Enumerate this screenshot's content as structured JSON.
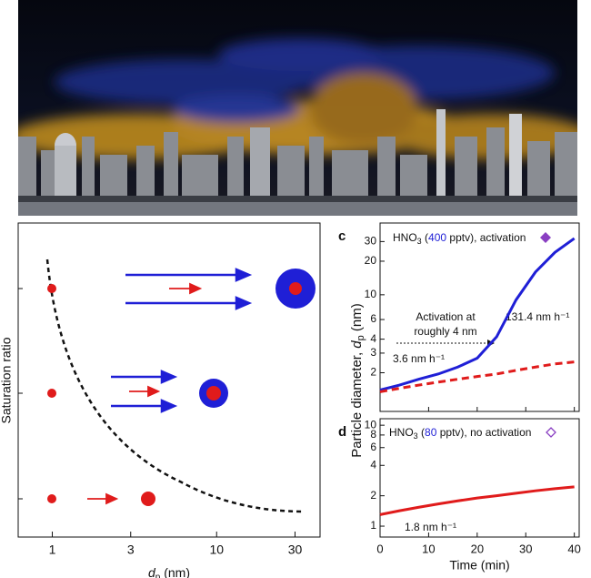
{
  "chart_data": [
    {
      "type": "schematic",
      "ylabel": "Saturation ratio",
      "xlabel": [
        "d",
        "p",
        " (nm)"
      ],
      "xscale": "log",
      "xlim": [
        0.62,
        42.6
      ],
      "xticks": [
        1,
        3,
        10,
        30
      ]
    },
    {
      "type": "line",
      "panel_label": "c",
      "annotation": [
        "HNO",
        "3",
        " (",
        "400",
        " pptv), activation"
      ],
      "labels": [
        "Activation at",
        "roughly 4 nm",
        "131.4 nm h⁻¹",
        "3.6 nm h⁻¹"
      ],
      "ylabel": [
        "Particle diameter, ",
        "d",
        "p",
        " (nm)"
      ],
      "yscale": "log",
      "ylim": [
        0.9,
        44
      ],
      "yticks": [
        2,
        3,
        4,
        6,
        10,
        20,
        30
      ],
      "xlim": [
        0,
        41
      ],
      "x": [
        0,
        4,
        8,
        12,
        16,
        20,
        24,
        28,
        32,
        36,
        40
      ],
      "series": [
        {
          "color": "#1f1fd6",
          "dashed": false,
          "values": [
            1.4,
            1.55,
            1.75,
            1.95,
            2.25,
            2.7,
            4.2,
            9,
            16,
            24,
            32
          ]
        },
        {
          "color": "#e01b1b",
          "dashed": true,
          "values": [
            1.35,
            1.45,
            1.55,
            1.65,
            1.75,
            1.85,
            1.95,
            2.1,
            2.25,
            2.4,
            2.5
          ]
        }
      ]
    },
    {
      "type": "line",
      "panel_label": "d",
      "annotation": [
        "HNO",
        "3",
        " (",
        "80",
        " pptv), no activation"
      ],
      "labels": [
        "1.8 nm h⁻¹"
      ],
      "xlabel": "Time (min)",
      "yscale": "log",
      "ylim": [
        0.78,
        11.6
      ],
      "yticks": [
        1,
        2,
        4,
        6,
        8,
        10
      ],
      "xlim": [
        0,
        41
      ],
      "xticks": [
        0,
        10,
        20,
        30,
        40
      ],
      "x": [
        0,
        4,
        8,
        12,
        16,
        20,
        24,
        28,
        32,
        36,
        40
      ],
      "series": [
        {
          "color": "#e01b1b",
          "dashed": false,
          "values": [
            1.3,
            1.42,
            1.54,
            1.66,
            1.78,
            1.9,
            2.0,
            2.12,
            2.24,
            2.35,
            2.45
          ]
        }
      ]
    }
  ]
}
